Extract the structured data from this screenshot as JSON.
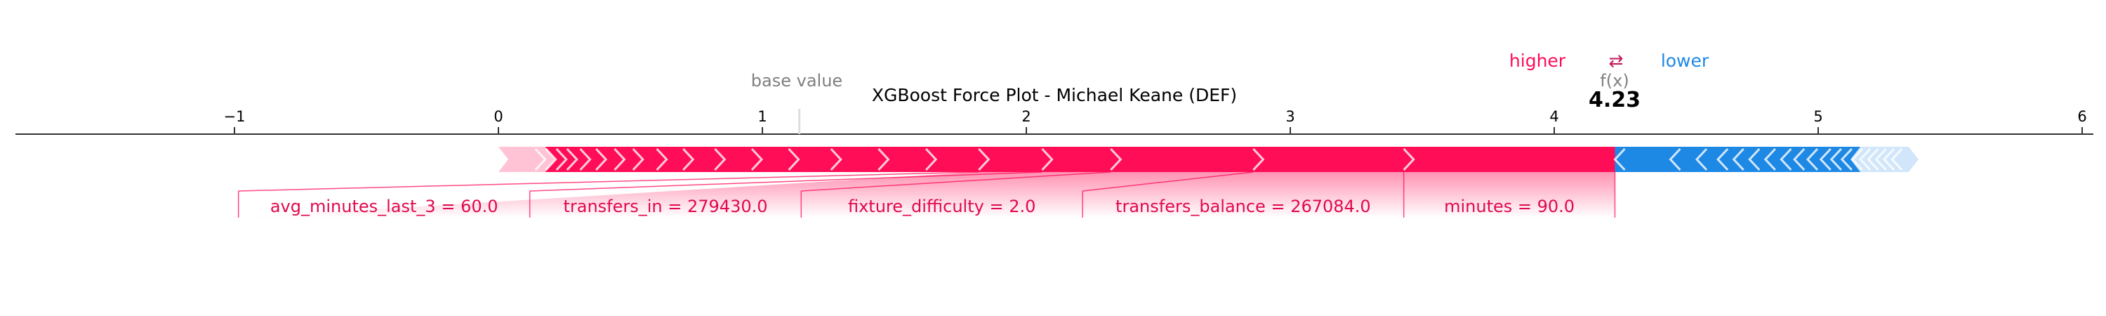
{
  "chart_data": {
    "type": "force",
    "title": "XGBoost Force Plot - Michael Keane (DEF)",
    "base_value": 1.14,
    "base_value_label": "base value",
    "output_label": "f(x)",
    "output_value": 4.23,
    "output_value_text": "4.23",
    "higher_label": "higher",
    "lower_label": "lower",
    "arrow_glyph": "⇄",
    "xlim": [
      -2,
      6
    ],
    "xticks": [
      -1,
      0,
      1,
      2,
      3,
      4,
      5,
      6
    ],
    "xtick_labels": [
      "−1",
      "0",
      "1",
      "2",
      "3",
      "4",
      "5",
      "6"
    ],
    "colors": {
      "positive": "#ff0d57",
      "negative": "#1e88e5",
      "positive_light": "#ffc3d5",
      "negative_light": "#d1e6fa",
      "label_positive": "#e0094d",
      "label_negative": "#1e88e5",
      "axis": "#333333",
      "muted": "#808080"
    },
    "positive_features": [
      {
        "label": "minutes = 90.0",
        "start": 3.43,
        "end": 4.23
      },
      {
        "label": "transfers_balance = 267084.0",
        "start": 2.86,
        "end": 3.43
      },
      {
        "label": "fixture_difficulty = 2.0",
        "start": 2.32,
        "end": 2.86
      },
      {
        "label": "transfers_in = 279430.0",
        "start": 2.06,
        "end": 2.32
      },
      {
        "label": "avg_minutes_last_3 = 60.0",
        "start": 1.82,
        "end": 2.06
      }
    ],
    "positive_chevrons": [
      0.14,
      0.18,
      0.22,
      0.26,
      0.31,
      0.37,
      0.44,
      0.51,
      0.6,
      0.7,
      0.82,
      0.96,
      1.1,
      1.26,
      1.44,
      1.62,
      1.82,
      2.06,
      2.32,
      2.86,
      3.43
    ],
    "positive_range": [
      0,
      4.23
    ],
    "positive_faded_until": 0.14,
    "negative_chevrons": [
      4.23,
      4.44,
      4.54,
      4.62,
      4.68,
      4.74,
      4.8,
      4.86,
      4.91,
      4.96,
      5.01,
      5.05,
      5.09,
      5.13,
      5.16,
      5.19,
      5.22,
      5.25,
      5.28
    ],
    "negative_range": [
      4.23,
      5.38
    ],
    "negative_faded_from": 5.16
  }
}
